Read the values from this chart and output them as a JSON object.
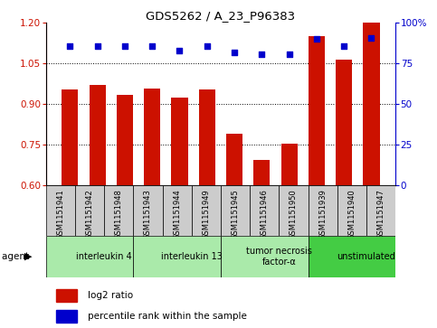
{
  "title": "GDS5262 / A_23_P96383",
  "samples": [
    "GSM1151941",
    "GSM1151942",
    "GSM1151948",
    "GSM1151943",
    "GSM1151944",
    "GSM1151949",
    "GSM1151945",
    "GSM1151946",
    "GSM1151950",
    "GSM1151939",
    "GSM1151940",
    "GSM1151947"
  ],
  "log2_ratio": [
    0.955,
    0.97,
    0.935,
    0.958,
    0.925,
    0.955,
    0.79,
    0.695,
    0.755,
    1.15,
    1.065,
    1.2
  ],
  "percentile": [
    86,
    86,
    86,
    86,
    83,
    86,
    82,
    80.5,
    81,
    90,
    86,
    91
  ],
  "agents": [
    {
      "label": "interleukin 4",
      "start": 0,
      "end": 3,
      "color": "#aaeaaa"
    },
    {
      "label": "interleukin 13",
      "start": 3,
      "end": 6,
      "color": "#aaeaaa"
    },
    {
      "label": "tumor necrosis\nfactor-α",
      "start": 6,
      "end": 9,
      "color": "#aaeaaa"
    },
    {
      "label": "unstimulated",
      "start": 9,
      "end": 12,
      "color": "#44cc44"
    }
  ],
  "ylim_left": [
    0.6,
    1.2
  ],
  "ylim_right": [
    0,
    100
  ],
  "yticks_left": [
    0.6,
    0.75,
    0.9,
    1.05,
    1.2
  ],
  "yticks_right": [
    0,
    25,
    50,
    75,
    100
  ],
  "bar_color": "#cc1100",
  "dot_color": "#0000cc",
  "bar_width": 0.6,
  "grid_color": "black"
}
